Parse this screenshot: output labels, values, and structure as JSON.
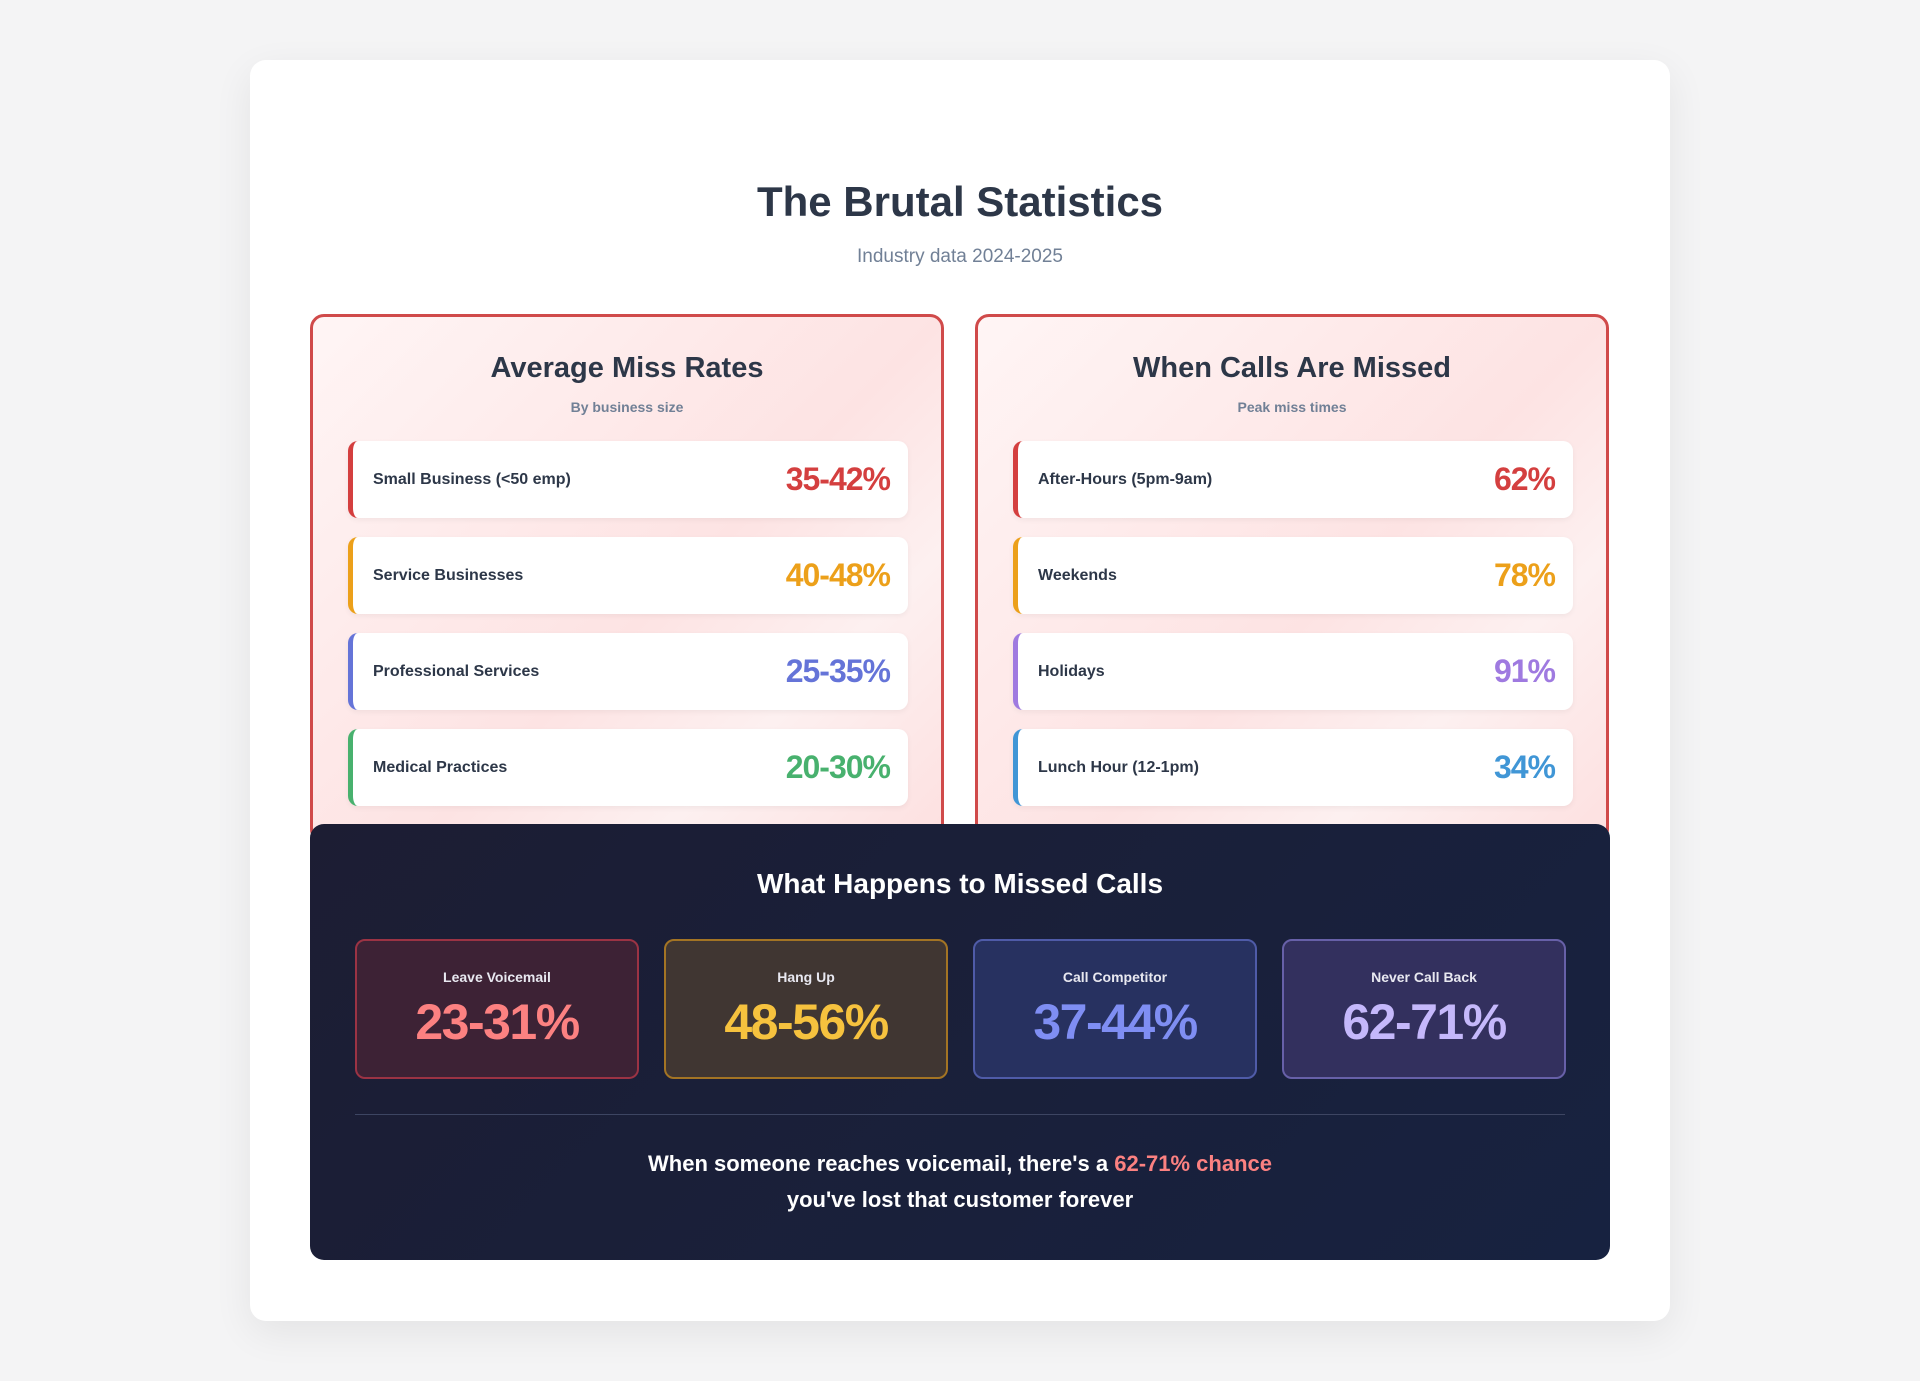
{
  "header": {
    "title": "The Brutal Statistics",
    "subtitle": "Industry data 2024-2025"
  },
  "miss_rates": {
    "title": "Average Miss Rates",
    "subtitle": "By business size",
    "items": [
      {
        "label": "Small Business (<50 emp)",
        "value": "35-42%",
        "color": "#d43f3f"
      },
      {
        "label": "Service Businesses",
        "value": "40-48%",
        "color": "#eca01a"
      },
      {
        "label": "Professional Services",
        "value": "25-35%",
        "color": "#6574d8"
      },
      {
        "label": "Medical Practices",
        "value": "20-30%",
        "color": "#48b16e"
      }
    ]
  },
  "miss_times": {
    "title": "When Calls Are Missed",
    "subtitle": "Peak miss times",
    "items": [
      {
        "label": "After-Hours (5pm-9am)",
        "value": "62%",
        "color": "#d43f3f"
      },
      {
        "label": "Weekends",
        "value": "78%",
        "color": "#eca01a"
      },
      {
        "label": "Holidays",
        "value": "91%",
        "color": "#9f7ae0"
      },
      {
        "label": "Lunch Hour (12-1pm)",
        "value": "34%",
        "color": "#4096d6"
      }
    ]
  },
  "outcomes": {
    "title": "What Happens to Missed Calls",
    "items": [
      {
        "label": "Leave Voicemail",
        "value": "23-31%",
        "color": "#fc8181",
        "bg": "#3d2235",
        "border": "#9b3344"
      },
      {
        "label": "Hang Up",
        "value": "48-56%",
        "color": "#f6c23e",
        "bg": "#403632",
        "border": "#a37424"
      },
      {
        "label": "Call Competitor",
        "value": "37-44%",
        "color": "#7f8ef3",
        "bg": "#273160",
        "border": "#4f5ba8"
      },
      {
        "label": "Never Call Back",
        "value": "62-71%",
        "color": "#c5b8fb",
        "bg": "#33305e",
        "border": "#6760a8"
      }
    ],
    "summary_before": "When someone reaches voicemail, there's a ",
    "summary_highlight": "62-71% chance",
    "summary_after": "you've lost that customer forever"
  }
}
